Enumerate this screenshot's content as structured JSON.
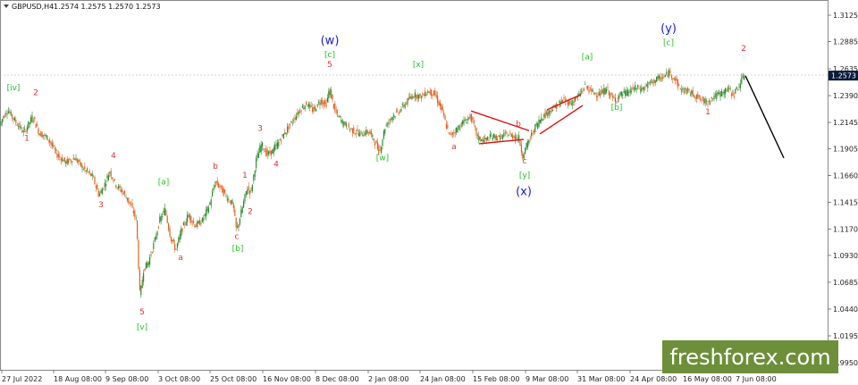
{
  "header": {
    "symbol": "GBPUSD,H4",
    "ohlc": "1.2574 1.2575 1.2570 1.2573"
  },
  "brand": {
    "text": "freshforex.com",
    "bg_color": "#6e8f3a",
    "text_color": "#ffffff"
  },
  "colors": {
    "bull": "#2e8b2e",
    "bear": "#e06020",
    "label_red": "#e53030",
    "label_green": "#22c222",
    "label_blue": "#1a1ae0",
    "trend_red": "#e01010",
    "projection": "#000000",
    "price_box": "#0a1a3a"
  },
  "chart_data": {
    "type": "candlestick",
    "title": "",
    "y_ticks": [
      "1.3125",
      "1.2885",
      "1.2635",
      "1.2390",
      "1.2145",
      "1.1905",
      "1.1660",
      "1.1415",
      "1.1170",
      "1.0930",
      "1.0685",
      "1.0440",
      "1.0195",
      "0.9950"
    ],
    "current_price": "1.2573",
    "x_ticks": [
      "27 Jul 2022",
      "18 Aug 08:00",
      "9 Sep 08:00",
      "3 Oct 08:00",
      "25 Oct 08:00",
      "16 Nov 08:00",
      "8 Dec 08:00",
      "2 Jan 08:00",
      "24 Jan 08:00",
      "15 Feb 08:00",
      "9 Mar 08:00",
      "31 Mar 08:00",
      "24 Apr 08:00",
      "16 May 08:00",
      "7 Jun 08:00"
    ],
    "price_path": [
      [
        0,
        1.21
      ],
      [
        5,
        1.22
      ],
      [
        10,
        1.226
      ],
      [
        18,
        1.216
      ],
      [
        28,
        1.205
      ],
      [
        38,
        1.22
      ],
      [
        45,
        1.205
      ],
      [
        55,
        1.2
      ],
      [
        65,
        1.185
      ],
      [
        75,
        1.178
      ],
      [
        85,
        1.182
      ],
      [
        95,
        1.172
      ],
      [
        105,
        1.165
      ],
      [
        112,
        1.148
      ],
      [
        118,
        1.157
      ],
      [
        124,
        1.17
      ],
      [
        132,
        1.156
      ],
      [
        140,
        1.15
      ],
      [
        148,
        1.138
      ],
      [
        154,
        1.125
      ],
      [
        158,
        1.055
      ],
      [
        162,
        1.08
      ],
      [
        168,
        1.088
      ],
      [
        174,
        1.105
      ],
      [
        180,
        1.125
      ],
      [
        186,
        1.135
      ],
      [
        192,
        1.11
      ],
      [
        198,
        1.098
      ],
      [
        204,
        1.115
      ],
      [
        212,
        1.13
      ],
      [
        220,
        1.12
      ],
      [
        228,
        1.125
      ],
      [
        236,
        1.14
      ],
      [
        242,
        1.16
      ],
      [
        248,
        1.155
      ],
      [
        256,
        1.145
      ],
      [
        262,
        1.14
      ],
      [
        266,
        1.115
      ],
      [
        272,
        1.135
      ],
      [
        278,
        1.155
      ],
      [
        282,
        1.15
      ],
      [
        288,
        1.18
      ],
      [
        294,
        1.195
      ],
      [
        300,
        1.185
      ],
      [
        306,
        1.188
      ],
      [
        312,
        1.195
      ],
      [
        320,
        1.205
      ],
      [
        328,
        1.215
      ],
      [
        336,
        1.225
      ],
      [
        344,
        1.232
      ],
      [
        352,
        1.225
      ],
      [
        360,
        1.235
      ],
      [
        366,
        1.23
      ],
      [
        370,
        1.245
      ],
      [
        376,
        1.225
      ],
      [
        384,
        1.215
      ],
      [
        394,
        1.208
      ],
      [
        404,
        1.204
      ],
      [
        414,
        1.206
      ],
      [
        420,
        1.198
      ],
      [
        426,
        1.187
      ],
      [
        432,
        1.21
      ],
      [
        440,
        1.22
      ],
      [
        448,
        1.225
      ],
      [
        456,
        1.233
      ],
      [
        464,
        1.24
      ],
      [
        472,
        1.238
      ],
      [
        480,
        1.243
      ],
      [
        488,
        1.24
      ],
      [
        496,
        1.225
      ],
      [
        504,
        1.202
      ],
      [
        512,
        1.208
      ],
      [
        520,
        1.215
      ],
      [
        528,
        1.22
      ],
      [
        536,
        1.2
      ],
      [
        544,
        1.198
      ],
      [
        552,
        1.202
      ],
      [
        560,
        1.2
      ],
      [
        568,
        1.204
      ],
      [
        576,
        1.202
      ],
      [
        582,
        1.2
      ],
      [
        586,
        1.184
      ],
      [
        592,
        1.196
      ],
      [
        600,
        1.21
      ],
      [
        608,
        1.22
      ],
      [
        616,
        1.225
      ],
      [
        624,
        1.23
      ],
      [
        632,
        1.235
      ],
      [
        640,
        1.232
      ],
      [
        648,
        1.238
      ],
      [
        656,
        1.248
      ],
      [
        664,
        1.242
      ],
      [
        672,
        1.24
      ],
      [
        680,
        1.245
      ],
      [
        688,
        1.235
      ],
      [
        696,
        1.24
      ],
      [
        704,
        1.242
      ],
      [
        712,
        1.246
      ],
      [
        720,
        1.245
      ],
      [
        728,
        1.25
      ],
      [
        736,
        1.254
      ],
      [
        744,
        1.256
      ],
      [
        750,
        1.26
      ],
      [
        756,
        1.255
      ],
      [
        762,
        1.245
      ],
      [
        770,
        1.243
      ],
      [
        778,
        1.24
      ],
      [
        786,
        1.235
      ],
      [
        792,
        1.233
      ],
      [
        800,
        1.238
      ],
      [
        808,
        1.241
      ],
      [
        816,
        1.245
      ],
      [
        822,
        1.24
      ],
      [
        828,
        1.248
      ],
      [
        834,
        1.2573
      ]
    ],
    "projection": [
      [
        834,
        1.2573
      ],
      [
        877,
        1.182
      ]
    ],
    "wave_labels": [
      {
        "text": "[iv]",
        "x": 15,
        "y": 1.244,
        "color": "label_green"
      },
      {
        "text": "2",
        "x": 40,
        "y": 1.2395,
        "color": "label_red"
      },
      {
        "text": "1",
        "x": 30,
        "y": 1.198,
        "color": "label_red"
      },
      {
        "text": "4",
        "x": 127,
        "y": 1.182,
        "color": "label_red"
      },
      {
        "text": "3",
        "x": 113,
        "y": 1.137,
        "color": "label_red"
      },
      {
        "text": "5",
        "x": 159,
        "y": 1.039,
        "color": "label_red"
      },
      {
        "text": "[v]",
        "x": 159,
        "y": 1.025,
        "color": "label_green"
      },
      {
        "text": "[a]",
        "x": 183,
        "y": 1.158,
        "color": "label_green"
      },
      {
        "text": "a",
        "x": 202,
        "y": 1.089,
        "color": "label_red"
      },
      {
        "text": "b",
        "x": 241,
        "y": 1.172,
        "color": "label_red"
      },
      {
        "text": "c",
        "x": 265,
        "y": 1.108,
        "color": "label_red"
      },
      {
        "text": "[b]",
        "x": 266,
        "y": 1.097,
        "color": "label_green"
      },
      {
        "text": "1",
        "x": 274,
        "y": 1.164,
        "color": "label_red"
      },
      {
        "text": "2",
        "x": 280,
        "y": 1.131,
        "color": "label_red"
      },
      {
        "text": "3",
        "x": 291,
        "y": 1.207,
        "color": "label_red"
      },
      {
        "text": "4",
        "x": 309,
        "y": 1.174,
        "color": "label_red"
      },
      {
        "text": "5",
        "x": 369,
        "y": 1.265,
        "color": "label_red"
      },
      {
        "text": "[c]",
        "x": 369,
        "y": 1.274,
        "color": "label_green"
      },
      {
        "text": "(w)",
        "x": 369,
        "y": 1.286,
        "color": "label_blue",
        "big": true
      },
      {
        "text": "[x]",
        "x": 468,
        "y": 1.265,
        "color": "label_green"
      },
      {
        "text": "[w]",
        "x": 428,
        "y": 1.18,
        "color": "label_green"
      },
      {
        "text": "a",
        "x": 508,
        "y": 1.19,
        "color": "label_red"
      },
      {
        "text": "b",
        "x": 580,
        "y": 1.211,
        "color": "label_red"
      },
      {
        "text": "c",
        "x": 587,
        "y": 1.177,
        "color": "label_red"
      },
      {
        "text": "[y]",
        "x": 587,
        "y": 1.164,
        "color": "label_green"
      },
      {
        "text": "(x)",
        "x": 586,
        "y": 1.148,
        "color": "label_blue",
        "big": true
      },
      {
        "text": "[a]",
        "x": 657,
        "y": 1.272,
        "color": "label_green"
      },
      {
        "text": "[b]",
        "x": 690,
        "y": 1.226,
        "color": "label_green"
      },
      {
        "text": "[c]",
        "x": 748,
        "y": 1.285,
        "color": "label_green"
      },
      {
        "text": "(y)",
        "x": 748,
        "y": 1.297,
        "color": "label_blue",
        "big": true
      },
      {
        "text": "1",
        "x": 792,
        "y": 1.222,
        "color": "label_red"
      },
      {
        "text": "2",
        "x": 832,
        "y": 1.28,
        "color": "label_red"
      }
    ],
    "trendlines": [
      {
        "from": [
          527,
          1.225
        ],
        "to": [
          592,
          1.207
        ]
      },
      {
        "from": [
          536,
          1.195
        ],
        "to": [
          586,
          1.199
        ]
      },
      {
        "from": [
          612,
          1.226
        ],
        "to": [
          650,
          1.24
        ]
      },
      {
        "from": [
          604,
          1.204
        ],
        "to": [
          652,
          1.23
        ]
      }
    ]
  }
}
